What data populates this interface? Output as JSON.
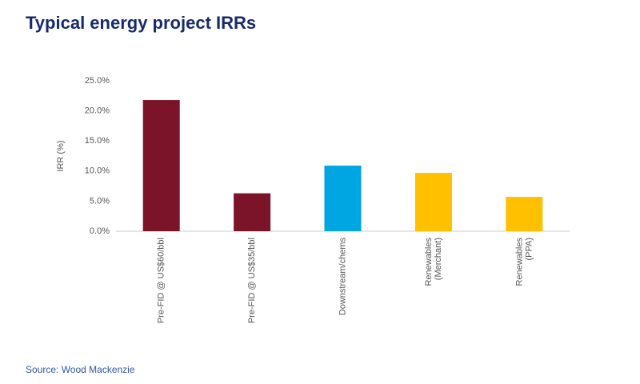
{
  "chart_data": {
    "type": "bar",
    "title": "Typical energy project IRRs",
    "y_label": "IRR (%)",
    "source": "Source: Wood Mackenzie",
    "categories": [
      "Pre-FID @ US$60/bbl",
      "Pre-FID @ US$35/bbl",
      "Downstream/chems",
      "Renewables\n(Merchant)",
      "Renewables\n(PPA)"
    ],
    "values": [
      21.8,
      6.3,
      10.9,
      9.7,
      5.7
    ],
    "colors": [
      "#7b1428",
      "#7b1428",
      "#00a6e2",
      "#ffc000",
      "#ffc000"
    ],
    "ylim": [
      0,
      25
    ],
    "yticks": [
      {
        "value": 0,
        "label": "0.0%"
      },
      {
        "value": 5,
        "label": "5.0%"
      },
      {
        "value": 10,
        "label": "10.0%"
      },
      {
        "value": 15,
        "label": "15.0%"
      },
      {
        "value": 20,
        "label": "20.0%"
      },
      {
        "value": 25,
        "label": "25.0%"
      }
    ],
    "grid": false
  }
}
